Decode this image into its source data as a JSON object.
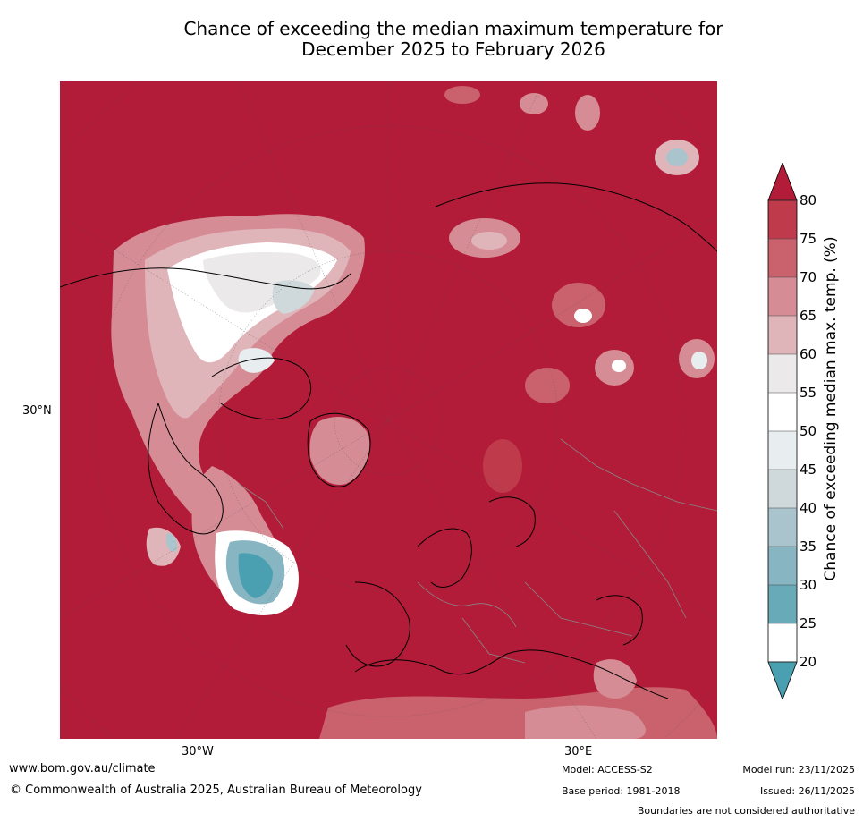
{
  "title": {
    "line1": "Chance of exceeding the median maximum temperature for",
    "line2": "December 2025 to February 2026"
  },
  "map": {
    "projection": "north-polar-stereographic",
    "axis_labels": {
      "left": "30°N",
      "bottom_left": "30°W",
      "bottom_right": "30°E"
    },
    "background_color": "#b21c38",
    "region_colors": {
      "gt80": "#b21c38",
      "75_80": "#c13d4e",
      "70_75": "#cb6671",
      "65_70": "#d6909a",
      "60_65": "#e1b9bd",
      "55_60": "#ececec",
      "45_55": "#ffffff",
      "40_45": "#e8edf0",
      "35_40": "#cfd8db",
      "30_35": "#a9c4cc",
      "25_30": "#87b5c2",
      "20_25": "#68aab8",
      "lt20": "#4a9fb1"
    }
  },
  "colorbar": {
    "label": "Chance of exceeding median max. temp. (%)",
    "ticks": [
      "80",
      "75",
      "70",
      "65",
      "60",
      "55",
      "50",
      "45",
      "40",
      "35",
      "30",
      "25",
      "20"
    ],
    "colors_top_to_bottom": [
      "#b21c38",
      "#bf3a4b",
      "#ca626d",
      "#d58c95",
      "#e0b5ba",
      "#ebe9ea",
      "#ffffff",
      "#e8edf0",
      "#cfd8db",
      "#a9c4cc",
      "#87b5c2",
      "#68aab8",
      "#4a9fb1"
    ]
  },
  "footer": {
    "url": "www.bom.gov.au/climate",
    "copyright": "© Commonwealth of Australia 2025, Australian Bureau of Meteorology",
    "model": "Model: ACCESS-S2",
    "base_period": "Base period: 1981-2018",
    "model_run": "Model run: 23/11/2025",
    "issued": "Issued: 26/11/2025",
    "disclaimer": "Boundaries are not considered authoritative"
  }
}
